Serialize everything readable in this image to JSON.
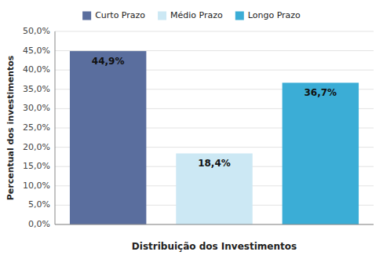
{
  "chart_data": {
    "type": "bar",
    "categories": [
      "Curto Prazo",
      "Médio Prazo",
      "Longo Prazo"
    ],
    "values": [
      44.9,
      18.4,
      36.7
    ],
    "value_labels": [
      "44,9%",
      "18,4%",
      "36,7%"
    ],
    "colors": [
      "#5a6e9e",
      "#cce8f4",
      "#3badd6"
    ],
    "xlabel": "Distribuição dos Investimentos",
    "ylabel": "Percentual dos investimentos",
    "ylim": [
      0,
      50
    ],
    "yticks": [
      {
        "value": 0,
        "label": "0,0%"
      },
      {
        "value": 5,
        "label": "5,0%"
      },
      {
        "value": 10,
        "label": "10,0%"
      },
      {
        "value": 15,
        "label": "15,0%"
      },
      {
        "value": 20,
        "label": "20,0%"
      },
      {
        "value": 25,
        "label": "25,0%"
      },
      {
        "value": 30,
        "label": "30,0%"
      },
      {
        "value": 35,
        "label": "35,0%"
      },
      {
        "value": 40,
        "label": "40,0%"
      },
      {
        "value": 45,
        "label": "45,0%"
      },
      {
        "value": 50,
        "label": "50,0%"
      }
    ],
    "grid": true,
    "legend": "top",
    "data_labels": true,
    "tick_labels": "y"
  }
}
